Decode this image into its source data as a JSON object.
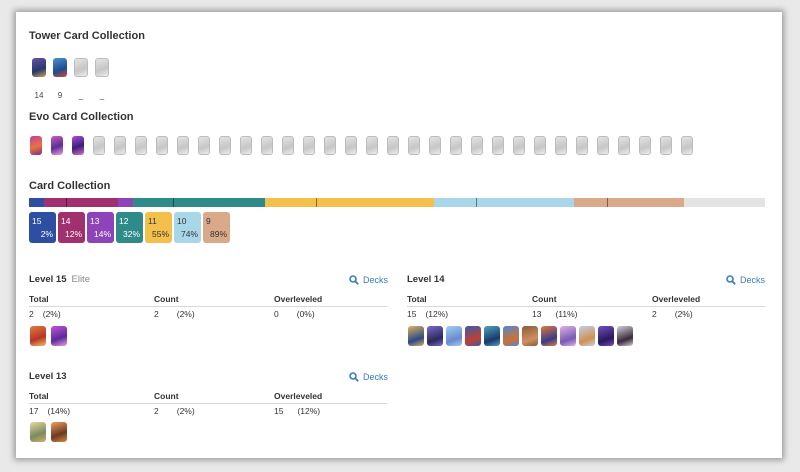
{
  "tower_collection": {
    "title": "Tower Card Collection",
    "cards": [
      {
        "icon": "princess-tower-card-icon",
        "level": "14"
      },
      {
        "icon": "cannoneer-tower-card-icon",
        "level": "9"
      },
      {
        "icon": "locked-tower-card-icon",
        "level": "_"
      },
      {
        "icon": "locked-tower-card-icon",
        "level": "_"
      }
    ]
  },
  "evo_collection": {
    "title": "Evo Card Collection",
    "unlocked": 3,
    "locked": 29
  },
  "card_collection": {
    "title": "Card Collection",
    "levels": [
      {
        "level": "15",
        "percent": "2%",
        "color": "#2e4fa1",
        "share": 0.02
      },
      {
        "level": "14",
        "percent": "12%",
        "color": "#a0306e",
        "share": 0.1
      },
      {
        "level": "13",
        "percent": "14%",
        "color": "#8d44b8",
        "share": 0.02
      },
      {
        "level": "12",
        "percent": "32%",
        "color": "#2f8a8a",
        "share": 0.18
      },
      {
        "level": "11",
        "percent": "55%",
        "color": "#f4c04c",
        "share": 0.23
      },
      {
        "level": "10",
        "percent": "74%",
        "color": "#a9d6e8",
        "share": 0.19
      },
      {
        "level": "9",
        "percent": "89%",
        "color": "#d9a98a",
        "share": 0.15
      }
    ],
    "remaining_color": "#e4e4e4"
  },
  "level15": {
    "title": "Level 15",
    "tag": "Elite",
    "decks_label": "Decks",
    "total_label": "Total",
    "count_label": "Count",
    "over_label": "Overleveled",
    "total": "2",
    "total_pct": "(2%)",
    "count": "2",
    "count_pct": "(2%)",
    "over": "0",
    "over_pct": "(0%)"
  },
  "level14": {
    "title": "Level 14",
    "decks_label": "Decks",
    "total_label": "Total",
    "count_label": "Count",
    "over_label": "Overleveled",
    "total": "15",
    "total_pct": "(12%)",
    "count": "13",
    "count_pct": "(11%)",
    "over": "2",
    "over_pct": "(2%)"
  },
  "level13": {
    "title": "Level 13",
    "decks_label": "Decks",
    "total_label": "Total",
    "count_label": "Count",
    "over_label": "Overleveled",
    "total": "17",
    "total_pct": "(14%)",
    "count": "2",
    "count_pct": "(2%)",
    "over": "15",
    "over_pct": "(12%)"
  }
}
